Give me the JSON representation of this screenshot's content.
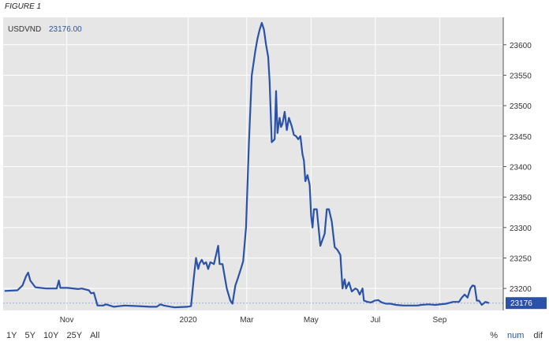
{
  "figure_label": "FIGURE 1",
  "legend": {
    "symbol": "USDVND",
    "value": "23176.00"
  },
  "last_value_label": "23176",
  "range_buttons": [
    "1Y",
    "5Y",
    "10Y",
    "25Y",
    "All"
  ],
  "mode_buttons": {
    "percent": "%",
    "num": "num",
    "dif": "dif"
  },
  "colors": {
    "line": "#2a52a8",
    "plot_bg": "#e6e6e6",
    "grid": "#ffffff",
    "badge": "#2a52a8"
  },
  "chart_data": {
    "type": "line",
    "title": "",
    "xlabel": "",
    "ylabel": "",
    "ylim": [
      23164,
      23645
    ],
    "yticks": [
      23200,
      23250,
      23300,
      23350,
      23400,
      23450,
      23500,
      23550,
      23600
    ],
    "grid": true,
    "y_axis_side": "right",
    "xticks": [
      {
        "label": "Nov",
        "x": 9
      },
      {
        "label": "2020",
        "x": 179
      },
      {
        "label": "Mar",
        "x": 261
      },
      {
        "label": "May",
        "x": 351
      },
      {
        "label": "Jul",
        "x": 441
      },
      {
        "label": "Sep",
        "x": 531
      }
    ],
    "x_range": [
      -80,
      620
    ],
    "reference_line": 23176,
    "series": [
      {
        "values": [
          [
            -78,
            23196
          ],
          [
            -60,
            23197
          ],
          [
            -53,
            23205
          ],
          [
            -48,
            23220
          ],
          [
            -45,
            23226
          ],
          [
            -42,
            23213
          ],
          [
            -35,
            23202
          ],
          [
            -20,
            23200
          ],
          [
            -5,
            23200
          ],
          [
            -2,
            23213
          ],
          [
            0,
            23201
          ],
          [
            10,
            23201
          ],
          [
            25,
            23199
          ],
          [
            30,
            23200
          ],
          [
            40,
            23197
          ],
          [
            43,
            23192
          ],
          [
            47,
            23193
          ],
          [
            52,
            23172
          ],
          [
            60,
            23172
          ],
          [
            64,
            23174
          ],
          [
            75,
            23170
          ],
          [
            90,
            23172
          ],
          [
            110,
            23171
          ],
          [
            125,
            23170
          ],
          [
            135,
            23170
          ],
          [
            140,
            23174
          ],
          [
            145,
            23172
          ],
          [
            155,
            23170
          ],
          [
            160,
            23169
          ],
          [
            178,
            23170
          ],
          [
            183,
            23171
          ],
          [
            187,
            23219
          ],
          [
            190,
            23250
          ],
          [
            193,
            23232
          ],
          [
            195,
            23241
          ],
          [
            198,
            23247
          ],
          [
            201,
            23240
          ],
          [
            204,
            23243
          ],
          [
            207,
            23232
          ],
          [
            210,
            23243
          ],
          [
            215,
            23240
          ],
          [
            219,
            23260
          ],
          [
            221,
            23270
          ],
          [
            223,
            23240
          ],
          [
            227,
            23240
          ],
          [
            233,
            23200
          ],
          [
            238,
            23180
          ],
          [
            241,
            23175
          ],
          [
            245,
            23205
          ],
          [
            248,
            23215
          ],
          [
            253,
            23233
          ],
          [
            256,
            23245
          ],
          [
            260,
            23300
          ],
          [
            264,
            23440
          ],
          [
            268,
            23550
          ],
          [
            273,
            23590
          ],
          [
            276,
            23610
          ],
          [
            279,
            23625
          ],
          [
            282,
            23636
          ],
          [
            285,
            23625
          ],
          [
            288,
            23600
          ],
          [
            291,
            23580
          ],
          [
            293,
            23540
          ],
          [
            296,
            23440
          ],
          [
            300,
            23445
          ],
          [
            302,
            23524
          ],
          [
            304,
            23455
          ],
          [
            307,
            23480
          ],
          [
            309,
            23465
          ],
          [
            311,
            23470
          ],
          [
            314,
            23490
          ],
          [
            317,
            23460
          ],
          [
            320,
            23480
          ],
          [
            324,
            23466
          ],
          [
            327,
            23452
          ],
          [
            330,
            23450
          ],
          [
            333,
            23445
          ],
          [
            336,
            23450
          ],
          [
            339,
            23420
          ],
          [
            341,
            23410
          ],
          [
            343,
            23376
          ],
          [
            346,
            23386
          ],
          [
            349,
            23370
          ],
          [
            351,
            23320
          ],
          [
            353,
            23300
          ],
          [
            355,
            23330
          ],
          [
            359,
            23330
          ],
          [
            364,
            23270
          ],
          [
            367,
            23280
          ],
          [
            370,
            23290
          ],
          [
            373,
            23330
          ],
          [
            376,
            23330
          ],
          [
            380,
            23310
          ],
          [
            384,
            23268
          ],
          [
            388,
            23263
          ],
          [
            392,
            23255
          ],
          [
            395,
            23200
          ],
          [
            398,
            23215
          ],
          [
            400,
            23200
          ],
          [
            404,
            23210
          ],
          [
            408,
            23195
          ],
          [
            413,
            23200
          ],
          [
            416,
            23198
          ],
          [
            419,
            23190
          ],
          [
            423,
            23200
          ],
          [
            425,
            23180
          ],
          [
            430,
            23178
          ],
          [
            435,
            23177
          ],
          [
            440,
            23180
          ],
          [
            445,
            23181
          ],
          [
            450,
            23177
          ],
          [
            456,
            23175
          ],
          [
            462,
            23175
          ],
          [
            470,
            23173
          ],
          [
            480,
            23172
          ],
          [
            500,
            23172
          ],
          [
            505,
            23173
          ],
          [
            515,
            23174
          ],
          [
            525,
            23173
          ],
          [
            540,
            23175
          ],
          [
            550,
            23178
          ],
          [
            558,
            23178
          ],
          [
            562,
            23185
          ],
          [
            566,
            23190
          ],
          [
            570,
            23185
          ],
          [
            574,
            23200
          ],
          [
            577,
            23205
          ],
          [
            580,
            23204
          ],
          [
            583,
            23180
          ],
          [
            586,
            23180
          ],
          [
            590,
            23173
          ],
          [
            595,
            23178
          ],
          [
            600,
            23176
          ]
        ]
      }
    ]
  }
}
